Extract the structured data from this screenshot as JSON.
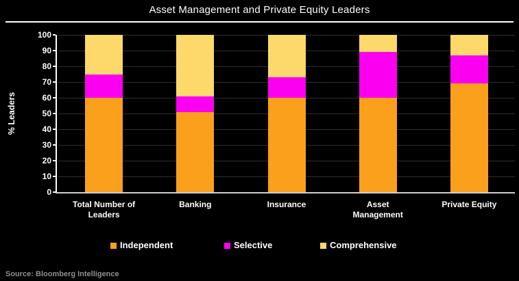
{
  "title": "Asset Management and Private Equity Leaders",
  "source": "Source: Bloomberg Intelligence",
  "chart_data": {
    "type": "bar",
    "stacked": true,
    "title": "Asset Management and Private Equity Leaders",
    "ylabel": "% Leaders",
    "xlabel": "",
    "ylim": [
      0,
      100
    ],
    "ytick_step": 10,
    "yticks": [
      0,
      10,
      20,
      30,
      40,
      50,
      60,
      70,
      80,
      90,
      100
    ],
    "grid": true,
    "legend_position": "bottom",
    "background_color": "#000000",
    "categories": [
      "Total Number of Leaders",
      "Banking",
      "Insurance",
      "Asset Management",
      "Private Equity"
    ],
    "category_label_lines": [
      [
        "Total Number of",
        "Leaders"
      ],
      [
        "Banking"
      ],
      [
        "Insurance"
      ],
      [
        "Asset",
        "Management"
      ],
      [
        "Private Equity"
      ]
    ],
    "series": [
      {
        "name": "Independent",
        "color": "#FAA01D",
        "values": [
          60,
          51,
          60,
          60,
          69
        ]
      },
      {
        "name": "Selective",
        "color": "#FB00F0",
        "values": [
          15,
          10,
          13,
          29,
          18
        ]
      },
      {
        "name": "Comprehensive",
        "color": "#FCD96A",
        "values": [
          25,
          39,
          27,
          11,
          13
        ]
      }
    ]
  }
}
